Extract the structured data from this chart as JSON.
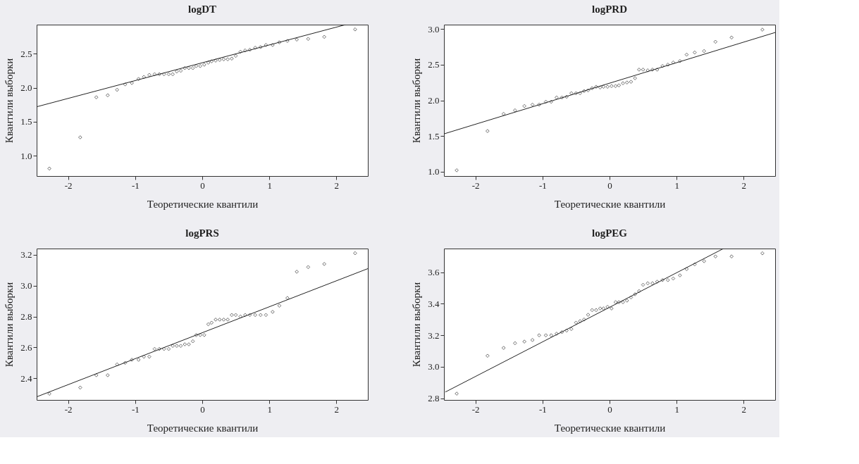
{
  "chart_data": [
    {
      "type": "scatter",
      "title": "logDT",
      "xlabel": "Теоретические квантили",
      "ylabel": "Квантили выборки",
      "grid": false,
      "xlim": [
        -2.47,
        2.47
      ],
      "xticks": [
        -2,
        -1,
        0,
        1,
        2
      ],
      "ylim": [
        0.7,
        2.93
      ],
      "yticks": [
        {
          "value": 1,
          "label": "1.0"
        },
        1.5,
        {
          "value": 2,
          "label": "2.0"
        },
        2.5
      ],
      "series": [
        {
          "marker": "diamond",
          "color": "#000000",
          "x": [
            -2.28,
            -1.82,
            -1.58,
            -1.41,
            -1.27,
            -1.15,
            -1.05,
            -0.95,
            -0.87,
            -0.79,
            -0.71,
            -0.64,
            -0.57,
            -0.5,
            -0.44,
            -0.38,
            -0.32,
            -0.26,
            -0.2,
            -0.14,
            -0.09,
            -0.03,
            0.03,
            0.09,
            0.14,
            0.2,
            0.26,
            0.32,
            0.38,
            0.44,
            0.5,
            0.57,
            0.64,
            0.71,
            0.79,
            0.87,
            0.95,
            1.05,
            1.15,
            1.27,
            1.41,
            1.58,
            1.82,
            2.28
          ],
          "values": [
            0.81,
            1.27,
            1.86,
            1.89,
            1.97,
            2.05,
            2.07,
            2.13,
            2.16,
            2.19,
            2.2,
            2.2,
            2.2,
            2.2,
            2.2,
            2.24,
            2.25,
            2.29,
            2.29,
            2.29,
            2.32,
            2.32,
            2.34,
            2.37,
            2.39,
            2.4,
            2.41,
            2.42,
            2.42,
            2.43,
            2.47,
            2.53,
            2.55,
            2.56,
            2.59,
            2.6,
            2.63,
            2.63,
            2.67,
            2.69,
            2.71,
            2.72,
            2.75,
            2.86
          ]
        },
        {
          "type": "line",
          "marker": "none",
          "color": "#222222",
          "x": [
            -2.47,
            2.14
          ],
          "values": [
            1.72,
            2.93
          ]
        }
      ]
    },
    {
      "type": "scatter",
      "title": "logPRD",
      "xlabel": "Теоретические квантили",
      "ylabel": "Квантили выборки",
      "grid": false,
      "xlim": [
        -2.47,
        2.47
      ],
      "xticks": [
        -2,
        -1,
        0,
        1,
        2
      ],
      "ylim": [
        0.94,
        3.06
      ],
      "yticks": [
        {
          "value": 1,
          "label": "1.0"
        },
        1.5,
        {
          "value": 2,
          "label": "2.0"
        },
        2.5,
        {
          "value": 3,
          "label": "3.0"
        }
      ],
      "series": [
        {
          "marker": "diamond",
          "color": "#000000",
          "x": [
            -2.28,
            -1.82,
            -1.58,
            -1.41,
            -1.27,
            -1.15,
            -1.05,
            -0.95,
            -0.87,
            -0.79,
            -0.71,
            -0.64,
            -0.57,
            -0.5,
            -0.44,
            -0.38,
            -0.32,
            -0.26,
            -0.2,
            -0.14,
            -0.09,
            -0.03,
            0.03,
            0.09,
            0.14,
            0.2,
            0.26,
            0.32,
            0.38,
            0.44,
            0.5,
            0.57,
            0.64,
            0.71,
            0.79,
            0.87,
            0.95,
            1.05,
            1.15,
            1.27,
            1.41,
            1.58,
            1.82,
            2.28
          ],
          "values": [
            1.02,
            1.57,
            1.81,
            1.86,
            1.92,
            1.94,
            1.94,
            1.98,
            1.98,
            2.04,
            2.04,
            2.05,
            2.1,
            2.1,
            2.1,
            2.13,
            2.14,
            2.17,
            2.19,
            2.18,
            2.19,
            2.19,
            2.2,
            2.2,
            2.21,
            2.24,
            2.25,
            2.26,
            2.31,
            2.43,
            2.43,
            2.42,
            2.43,
            2.43,
            2.48,
            2.5,
            2.53,
            2.55,
            2.64,
            2.67,
            2.69,
            2.82,
            2.88,
            2.99
          ]
        },
        {
          "type": "line",
          "marker": "none",
          "color": "#222222",
          "x": [
            -2.47,
            2.47
          ],
          "values": [
            1.53,
            2.95
          ]
        }
      ]
    },
    {
      "type": "scatter",
      "title": "logPRS",
      "xlabel": "Теоретические квантили",
      "ylabel": "Квантили выборки",
      "grid": false,
      "xlim": [
        -2.47,
        2.47
      ],
      "xticks": [
        -2,
        -1,
        0,
        1,
        2
      ],
      "ylim": [
        2.26,
        3.24
      ],
      "yticks": [
        2.4,
        2.6,
        2.8,
        {
          "value": 3,
          "label": "3.0"
        },
        3.2
      ],
      "series": [
        {
          "marker": "diamond",
          "color": "#000000",
          "x": [
            -2.28,
            -1.82,
            -1.58,
            -1.41,
            -1.27,
            -1.15,
            -1.05,
            -0.95,
            -0.87,
            -0.79,
            -0.71,
            -0.64,
            -0.57,
            -0.5,
            -0.44,
            -0.38,
            -0.32,
            -0.26,
            -0.2,
            -0.14,
            -0.09,
            -0.03,
            0.03,
            0.09,
            0.14,
            0.2,
            0.26,
            0.32,
            0.38,
            0.44,
            0.5,
            0.57,
            0.64,
            0.71,
            0.79,
            0.87,
            0.95,
            1.05,
            1.15,
            1.27,
            1.41,
            1.58,
            1.82,
            2.28
          ],
          "values": [
            2.3,
            2.34,
            2.42,
            2.42,
            2.49,
            2.5,
            2.52,
            2.52,
            2.54,
            2.54,
            2.59,
            2.59,
            2.59,
            2.59,
            2.61,
            2.61,
            2.61,
            2.62,
            2.62,
            2.64,
            2.68,
            2.68,
            2.68,
            2.75,
            2.76,
            2.78,
            2.78,
            2.78,
            2.78,
            2.81,
            2.81,
            2.8,
            2.81,
            2.81,
            2.81,
            2.81,
            2.81,
            2.83,
            2.87,
            2.92,
            3.09,
            3.12,
            3.14,
            3.21
          ]
        },
        {
          "type": "line",
          "marker": "none",
          "color": "#222222",
          "x": [
            -2.47,
            2.47
          ],
          "values": [
            2.28,
            3.11
          ]
        }
      ]
    },
    {
      "type": "scatter",
      "title": "logPEG",
      "xlabel": "Теоретические квантили",
      "ylabel": "Квантили выборки",
      "grid": false,
      "xlim": [
        -2.47,
        2.47
      ],
      "xticks": [
        -2,
        -1,
        0,
        1,
        2
      ],
      "ylim": [
        2.79,
        3.75
      ],
      "yticks": [
        2.8,
        {
          "value": 3,
          "label": "3.0"
        },
        3.2,
        3.4,
        3.6
      ],
      "series": [
        {
          "marker": "diamond",
          "color": "#000000",
          "x": [
            -2.28,
            -1.82,
            -1.58,
            -1.41,
            -1.27,
            -1.15,
            -1.05,
            -0.95,
            -0.87,
            -0.79,
            -0.71,
            -0.64,
            -0.57,
            -0.5,
            -0.44,
            -0.38,
            -0.32,
            -0.26,
            -0.2,
            -0.14,
            -0.09,
            -0.03,
            0.03,
            0.09,
            0.14,
            0.2,
            0.26,
            0.32,
            0.38,
            0.44,
            0.5,
            0.57,
            0.64,
            0.71,
            0.79,
            0.87,
            0.95,
            1.05,
            1.15,
            1.27,
            1.41,
            1.58,
            1.82,
            2.28
          ],
          "values": [
            2.83,
            3.07,
            3.12,
            3.15,
            3.16,
            3.17,
            3.2,
            3.2,
            3.2,
            3.21,
            3.22,
            3.23,
            3.24,
            3.28,
            3.29,
            3.3,
            3.33,
            3.36,
            3.36,
            3.37,
            3.37,
            3.38,
            3.37,
            3.41,
            3.41,
            3.41,
            3.42,
            3.44,
            3.46,
            3.48,
            3.52,
            3.53,
            3.53,
            3.54,
            3.55,
            3.55,
            3.56,
            3.58,
            3.62,
            3.65,
            3.67,
            3.7,
            3.7,
            3.72
          ]
        },
        {
          "type": "line",
          "marker": "none",
          "color": "#222222",
          "x": [
            -2.45,
            1.7
          ],
          "values": [
            2.84,
            3.75
          ]
        }
      ]
    }
  ]
}
